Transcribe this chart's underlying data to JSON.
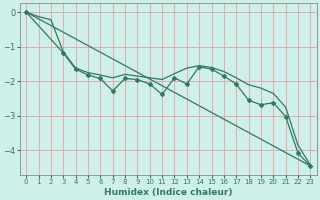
{
  "xlabel": "Humidex (Indice chaleur)",
  "ylabel": "",
  "background_color": "#cff0ea",
  "grid_color": "#e8a0a0",
  "line_color": "#2d7a66",
  "xlim": [
    -0.5,
    23.5
  ],
  "ylim": [
    -4.7,
    0.25
  ],
  "yticks": [
    0,
    -1,
    -2,
    -3,
    -4
  ],
  "xticks": [
    0,
    1,
    2,
    3,
    4,
    5,
    6,
    7,
    8,
    9,
    10,
    11,
    12,
    13,
    14,
    15,
    16,
    17,
    18,
    19,
    20,
    21,
    22,
    23
  ],
  "series": [
    {
      "x": [
        0,
        23
      ],
      "y": [
        0.0,
        -4.45
      ],
      "marker": false
    },
    {
      "x": [
        0,
        1,
        2,
        3,
        4,
        5,
        6,
        7,
        8,
        9,
        10,
        11,
        12,
        13,
        14,
        15,
        16,
        17,
        18,
        19,
        20,
        21,
        22,
        23
      ],
      "y": [
        0.0,
        -0.13,
        -0.22,
        -1.15,
        -1.62,
        -1.75,
        -1.82,
        -1.9,
        -1.8,
        -1.85,
        -1.9,
        -1.95,
        -1.78,
        -1.62,
        -1.55,
        -1.6,
        -1.72,
        -1.9,
        -2.1,
        -2.2,
        -2.35,
        -2.75,
        -3.85,
        -4.42
      ],
      "marker": false
    },
    {
      "x": [
        0,
        3,
        4,
        5,
        6,
        7,
        8,
        9,
        10,
        11,
        12,
        13,
        14,
        15,
        16,
        17,
        18,
        19,
        20,
        21,
        22,
        23
      ],
      "y": [
        0.0,
        -1.18,
        -1.65,
        -1.82,
        -1.92,
        -2.28,
        -1.92,
        -1.95,
        -2.08,
        -2.38,
        -1.9,
        -2.08,
        -1.58,
        -1.65,
        -1.85,
        -2.08,
        -2.55,
        -2.68,
        -2.62,
        -3.02,
        -4.08,
        -4.45
      ],
      "marker": true
    }
  ]
}
